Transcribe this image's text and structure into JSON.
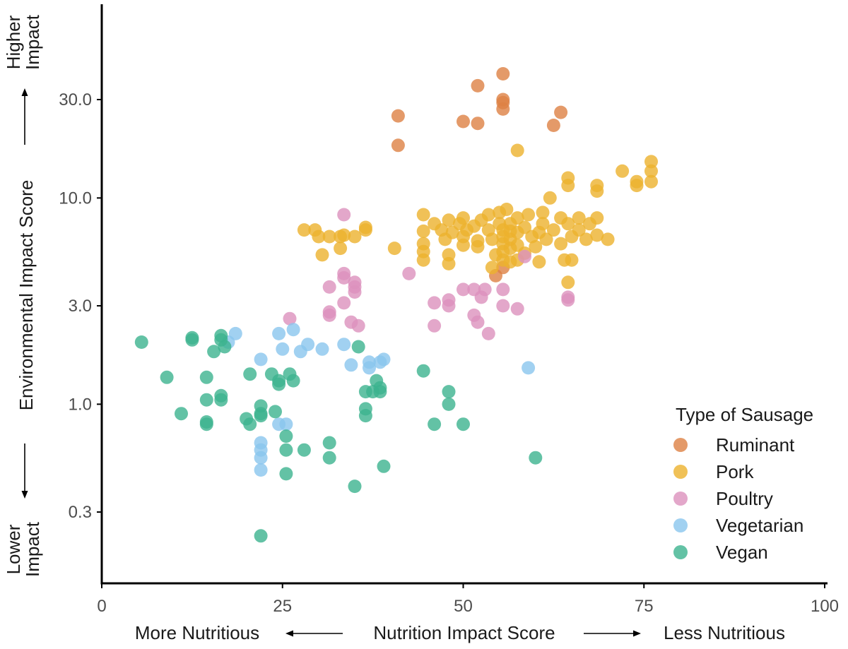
{
  "chart_data": {
    "type": "scatter",
    "xlabel": "Nutrition Impact Score",
    "ylabel": "Environmental Impact Score",
    "x_direction_labels": {
      "low": "More Nutritious",
      "high": "Less Nutritious"
    },
    "y_direction_labels": {
      "high": "Higher Impact",
      "low": "Lower Impact"
    },
    "xlim": [
      0,
      100
    ],
    "ylim": [
      0.16,
      70
    ],
    "y_scale": "log",
    "x_ticks": [
      "0",
      "25",
      "50",
      "75",
      "100"
    ],
    "x_tick_values": [
      0,
      25,
      50,
      75,
      100
    ],
    "y_ticks": [
      "0.3",
      "1.0",
      "3.0",
      "10.0",
      "30.0"
    ],
    "y_tick_values": [
      0.3,
      1.0,
      3.0,
      10.0,
      30.0
    ],
    "grid": false,
    "legend_title": "Type of Sausage",
    "legend_position": "bottom-right",
    "series": [
      {
        "name": "Ruminant",
        "color": "#dd8144",
        "points": [
          [
            55.5,
            40
          ],
          [
            52,
            35
          ],
          [
            55.5,
            30
          ],
          [
            55.5,
            29
          ],
          [
            55.5,
            27
          ],
          [
            63.5,
            26
          ],
          [
            41,
            25
          ],
          [
            50,
            23.5
          ],
          [
            52,
            23
          ],
          [
            62.5,
            22.5
          ],
          [
            41,
            18
          ],
          [
            54.5,
            4.2
          ],
          [
            55.5,
            4.6
          ]
        ]
      },
      {
        "name": "Pork",
        "color": "#ecb22d",
        "points": [
          [
            28,
            7.0
          ],
          [
            29.5,
            7.0
          ],
          [
            30,
            6.5
          ],
          [
            31.5,
            6.5
          ],
          [
            33,
            6.5
          ],
          [
            33.5,
            6.6
          ],
          [
            35,
            6.5
          ],
          [
            36.5,
            7.0
          ],
          [
            36.5,
            7.2
          ],
          [
            30.5,
            5.3
          ],
          [
            33,
            5.7
          ],
          [
            40.5,
            5.7
          ],
          [
            44.5,
            8.3
          ],
          [
            44.5,
            6.9
          ],
          [
            44.5,
            6.0
          ],
          [
            44.5,
            5.5
          ],
          [
            44.5,
            5.0
          ],
          [
            46,
            7.5
          ],
          [
            47,
            7.0
          ],
          [
            47.5,
            6.3
          ],
          [
            48,
            7.8
          ],
          [
            48.5,
            6.8
          ],
          [
            48,
            5.3
          ],
          [
            48,
            4.8
          ],
          [
            49.5,
            7.5
          ],
          [
            50,
            8.0
          ],
          [
            50,
            6.5
          ],
          [
            50,
            5.9
          ],
          [
            50.5,
            7.0
          ],
          [
            51.5,
            7.3
          ],
          [
            52,
            6.2
          ],
          [
            52,
            5.8
          ],
          [
            52.5,
            7.8
          ],
          [
            53.5,
            8.3
          ],
          [
            53.5,
            7.0
          ],
          [
            54,
            6.3
          ],
          [
            54,
            4.6
          ],
          [
            54.5,
            5.3
          ],
          [
            55,
            8.5
          ],
          [
            55,
            7.5
          ],
          [
            55.5,
            7.0
          ],
          [
            55.5,
            6.5
          ],
          [
            55.5,
            6.0
          ],
          [
            55.5,
            5.5
          ],
          [
            55.5,
            5.0
          ],
          [
            56,
            8.8
          ],
          [
            56.5,
            7.5
          ],
          [
            56.5,
            6.9
          ],
          [
            56.5,
            6.3
          ],
          [
            56.5,
            5.7
          ],
          [
            56.5,
            4.9
          ],
          [
            57.5,
            8.0
          ],
          [
            57.5,
            6.8
          ],
          [
            57.5,
            5.9
          ],
          [
            57.5,
            5.0
          ],
          [
            58.5,
            7.2
          ],
          [
            58.5,
            5.4
          ],
          [
            59,
            8.3
          ],
          [
            59.5,
            6.5
          ],
          [
            60,
            5.8
          ],
          [
            60.5,
            6.8
          ],
          [
            60.5,
            4.9
          ],
          [
            61,
            8.5
          ],
          [
            61,
            7.5
          ],
          [
            61.5,
            6.3
          ],
          [
            62.5,
            7.0
          ],
          [
            63.5,
            8.0
          ],
          [
            63.5,
            6.0
          ],
          [
            64,
            5.0
          ],
          [
            64.5,
            7.5
          ],
          [
            65,
            6.5
          ],
          [
            65,
            5.0
          ],
          [
            64.5,
            3.9
          ],
          [
            66,
            8.0
          ],
          [
            66,
            7.0
          ],
          [
            67.5,
            7.5
          ],
          [
            67,
            6.3
          ],
          [
            68.5,
            8.0
          ],
          [
            68.5,
            6.6
          ],
          [
            70,
            6.3
          ],
          [
            68.5,
            11.5
          ],
          [
            68.5,
            10.8
          ],
          [
            62,
            10.0
          ],
          [
            64.5,
            12.5
          ],
          [
            64.5,
            11.5
          ],
          [
            57.5,
            17.0
          ],
          [
            72,
            13.5
          ],
          [
            74,
            12.0
          ],
          [
            74,
            11.5
          ],
          [
            76,
            15.0
          ],
          [
            76,
            13.5
          ],
          [
            76,
            12.0
          ]
        ]
      },
      {
        "name": "Poultry",
        "color": "#dc91bd",
        "points": [
          [
            33.5,
            8.3
          ],
          [
            33.5,
            4.3
          ],
          [
            33.5,
            4.1
          ],
          [
            31.5,
            3.7
          ],
          [
            35,
            3.9
          ],
          [
            35,
            3.7
          ],
          [
            35,
            3.5
          ],
          [
            33.5,
            3.1
          ],
          [
            31.5,
            2.8
          ],
          [
            31.5,
            2.7
          ],
          [
            34.5,
            2.5
          ],
          [
            35.5,
            2.4
          ],
          [
            42.5,
            4.3
          ],
          [
            46,
            3.1
          ],
          [
            46,
            2.4
          ],
          [
            48,
            3.2
          ],
          [
            48,
            3.0
          ],
          [
            50,
            3.6
          ],
          [
            51.5,
            3.6
          ],
          [
            52.5,
            3.3
          ],
          [
            53,
            3.6
          ],
          [
            51.5,
            2.7
          ],
          [
            52,
            2.5
          ],
          [
            53.5,
            2.2
          ],
          [
            55.5,
            3.6
          ],
          [
            55.5,
            3.0
          ],
          [
            57.5,
            2.9
          ],
          [
            64.5,
            3.3
          ],
          [
            64.5,
            3.2
          ],
          [
            26,
            2.6
          ],
          [
            58.5,
            5.2
          ]
        ]
      },
      {
        "name": "Vegetarian",
        "color": "#8ac5ed",
        "points": [
          [
            17.5,
            2.0
          ],
          [
            18.5,
            2.2
          ],
          [
            22,
            1.65
          ],
          [
            24.5,
            2.2
          ],
          [
            25,
            1.85
          ],
          [
            26.5,
            2.3
          ],
          [
            27.5,
            1.8
          ],
          [
            28.5,
            1.95
          ],
          [
            30.5,
            1.85
          ],
          [
            33.5,
            1.95
          ],
          [
            34.5,
            1.55
          ],
          [
            37,
            1.6
          ],
          [
            37,
            1.5
          ],
          [
            38.5,
            1.6
          ],
          [
            39,
            1.65
          ],
          [
            24.5,
            0.8
          ],
          [
            25.5,
            0.8
          ],
          [
            22,
            0.65
          ],
          [
            22,
            0.6
          ],
          [
            22,
            0.55
          ],
          [
            22,
            0.48
          ],
          [
            59,
            1.5
          ]
        ]
      },
      {
        "name": "Vegan",
        "color": "#3cb38f",
        "points": [
          [
            5.5,
            2.0
          ],
          [
            9,
            1.35
          ],
          [
            12.5,
            2.1
          ],
          [
            12.5,
            2.05
          ],
          [
            16.5,
            2.15
          ],
          [
            16.5,
            2.05
          ],
          [
            17,
            1.9
          ],
          [
            15.5,
            1.8
          ],
          [
            14.5,
            1.35
          ],
          [
            20.5,
            1.4
          ],
          [
            23.5,
            1.4
          ],
          [
            24.5,
            1.3
          ],
          [
            24.5,
            1.25
          ],
          [
            26,
            1.4
          ],
          [
            26.5,
            1.3
          ],
          [
            16.5,
            1.1
          ],
          [
            16.5,
            1.05
          ],
          [
            14.5,
            1.05
          ],
          [
            11,
            0.9
          ],
          [
            14.5,
            0.82
          ],
          [
            14.5,
            0.8
          ],
          [
            20,
            0.85
          ],
          [
            20.5,
            0.8
          ],
          [
            22,
            0.98
          ],
          [
            22,
            0.9
          ],
          [
            22,
            0.88
          ],
          [
            24,
            0.92
          ],
          [
            25.5,
            0.7
          ],
          [
            25.5,
            0.6
          ],
          [
            28,
            0.6
          ],
          [
            31.5,
            0.65
          ],
          [
            31.5,
            0.55
          ],
          [
            25.5,
            0.46
          ],
          [
            35,
            0.4
          ],
          [
            39,
            0.5
          ],
          [
            22,
            0.23
          ],
          [
            35.5,
            1.9
          ],
          [
            36.5,
            1.15
          ],
          [
            36.5,
            0.95
          ],
          [
            36.5,
            0.88
          ],
          [
            37.5,
            1.15
          ],
          [
            38,
            1.3
          ],
          [
            38.5,
            1.15
          ],
          [
            38.5,
            1.2
          ],
          [
            44.5,
            1.45
          ],
          [
            46,
            0.8
          ],
          [
            48,
            1.15
          ],
          [
            48,
            1.0
          ],
          [
            50,
            0.8
          ],
          [
            60,
            0.55
          ]
        ]
      }
    ]
  }
}
